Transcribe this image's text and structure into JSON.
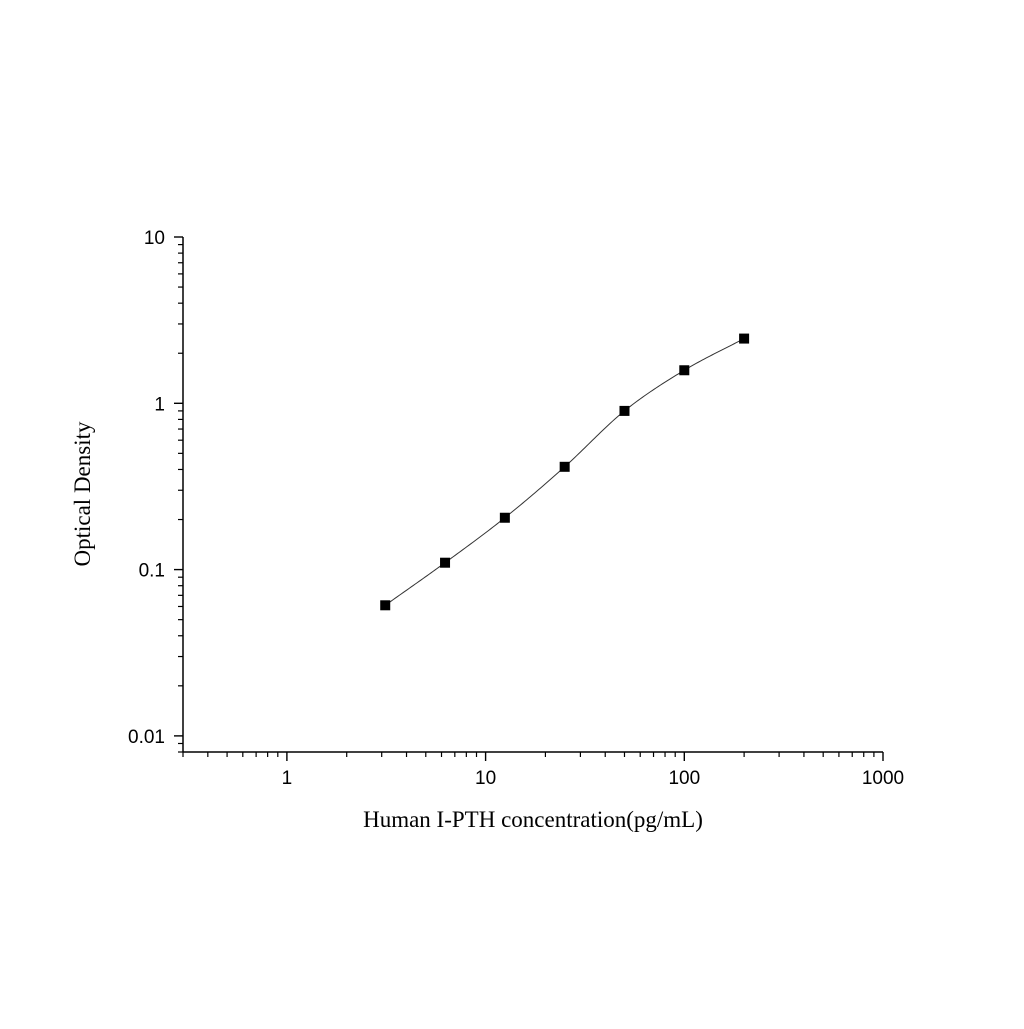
{
  "chart_data": {
    "type": "scatter",
    "xlabel": "Human I-PTH concentration(pg/mL)",
    "ylabel": "Optical Density",
    "x_scale": "log",
    "y_scale": "log",
    "xlim": [
      0.3,
      1000
    ],
    "ylim": [
      0.008,
      10
    ],
    "x_ticks": [
      {
        "value": 1,
        "label": "1"
      },
      {
        "value": 10,
        "label": "10"
      },
      {
        "value": 100,
        "label": "100"
      },
      {
        "value": 1000,
        "label": "1000"
      }
    ],
    "y_ticks": [
      {
        "value": 0.01,
        "label": "0.01"
      },
      {
        "value": 0.1,
        "label": "0.1"
      },
      {
        "value": 1,
        "label": "1"
      },
      {
        "value": 10,
        "label": "10"
      }
    ],
    "grid": false,
    "legend": "none",
    "series": [
      {
        "marker": "square",
        "color": "#000000",
        "x": [
          3.125,
          6.25,
          12.5,
          25,
          50,
          100,
          200
        ],
        "y": [
          0.061,
          0.11,
          0.205,
          0.415,
          0.9,
          1.58,
          2.45
        ],
        "fit_curve": true
      }
    ]
  }
}
